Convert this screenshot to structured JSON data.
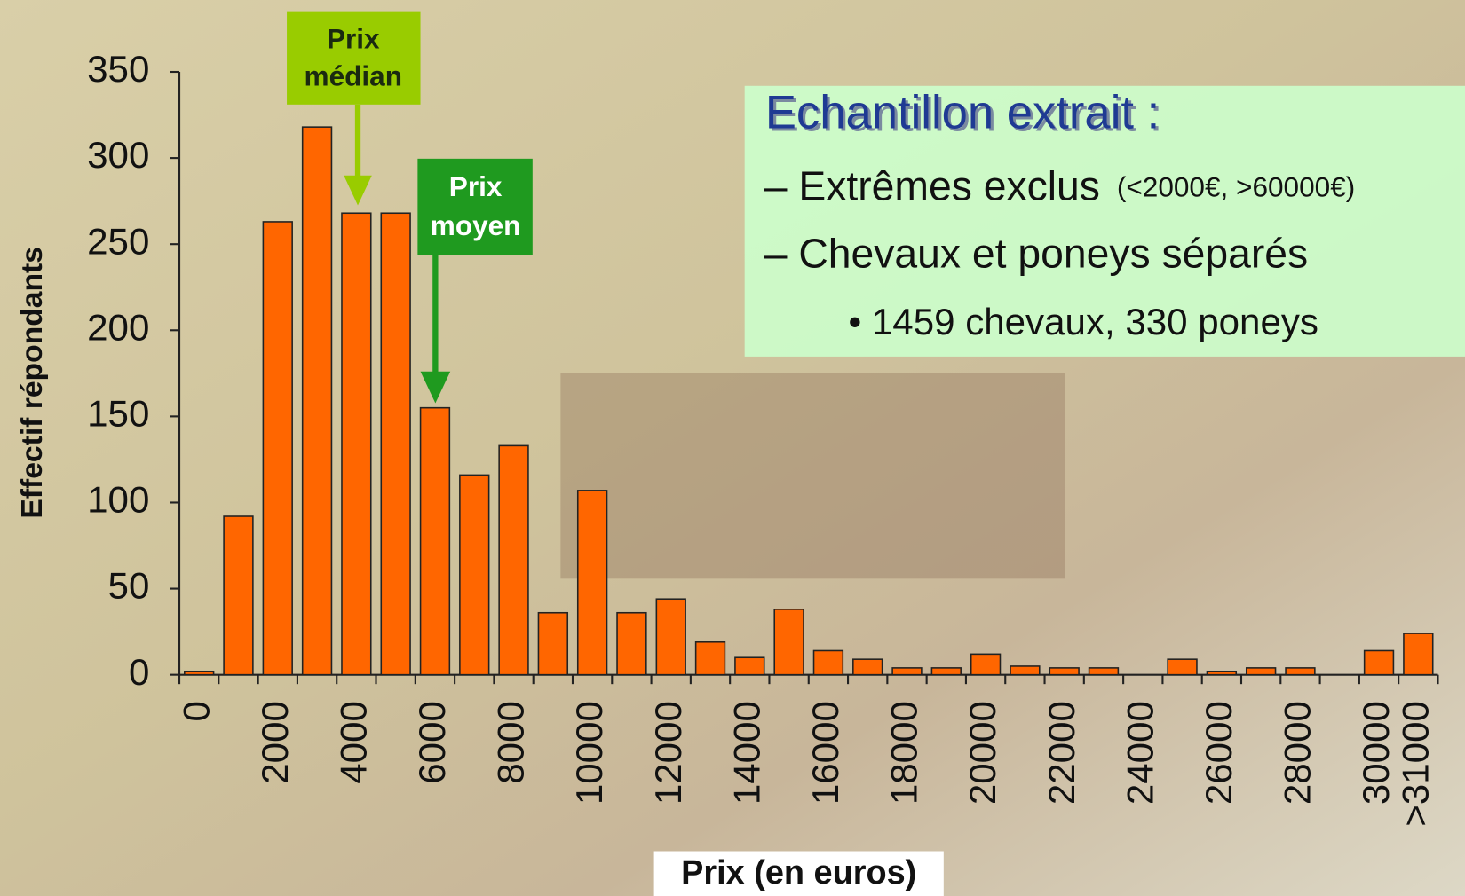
{
  "chart_data": {
    "type": "bar",
    "color": "#ff6600",
    "xlabel": "Prix (en euros)",
    "ylabel": "Effectif répondants",
    "categories": [
      "0",
      null,
      "2000",
      null,
      "4000",
      null,
      "6000",
      null,
      "8000",
      null,
      "10000",
      null,
      "12000",
      null,
      "14000",
      null,
      "16000",
      null,
      "18000",
      null,
      "20000",
      null,
      "22000",
      null,
      "24000",
      null,
      "26000",
      null,
      "28000",
      null,
      "30000",
      ">31000"
    ],
    "values": [
      2,
      92,
      263,
      318,
      268,
      268,
      155,
      116,
      133,
      36,
      107,
      36,
      44,
      19,
      10,
      38,
      14,
      9,
      4,
      4,
      12,
      5,
      4,
      4,
      0,
      9,
      2,
      4,
      4,
      0,
      14,
      24
    ],
    "ylim": [
      0,
      350
    ],
    "yticks": [
      0,
      50,
      100,
      150,
      200,
      250,
      300,
      350
    ],
    "median_label": [
      "Prix",
      "médian"
    ],
    "mean_label": [
      "Prix",
      "moyen"
    ],
    "notes": {
      "title": "Echantillon extrait :",
      "line1": "– Extrêmes exclus",
      "line1_small": "(<2000€, >60000€)",
      "line2": "– Chevaux et poneys séparés",
      "bullet": "• 1459 chevaux, 330 poneys"
    }
  }
}
